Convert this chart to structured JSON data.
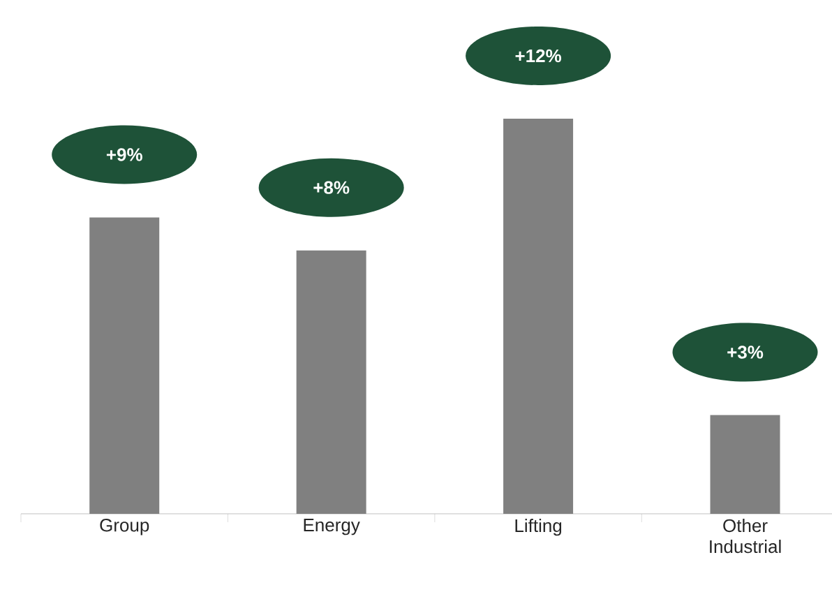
{
  "chart_data": {
    "type": "bar",
    "categories": [
      "Group",
      "Energy",
      "Lifting",
      "Other Industrial"
    ],
    "values": [
      9,
      8,
      12,
      3
    ],
    "value_labels": [
      "+9%",
      "+8%",
      "+12%",
      "+3%"
    ],
    "color": "#808080"
  }
}
